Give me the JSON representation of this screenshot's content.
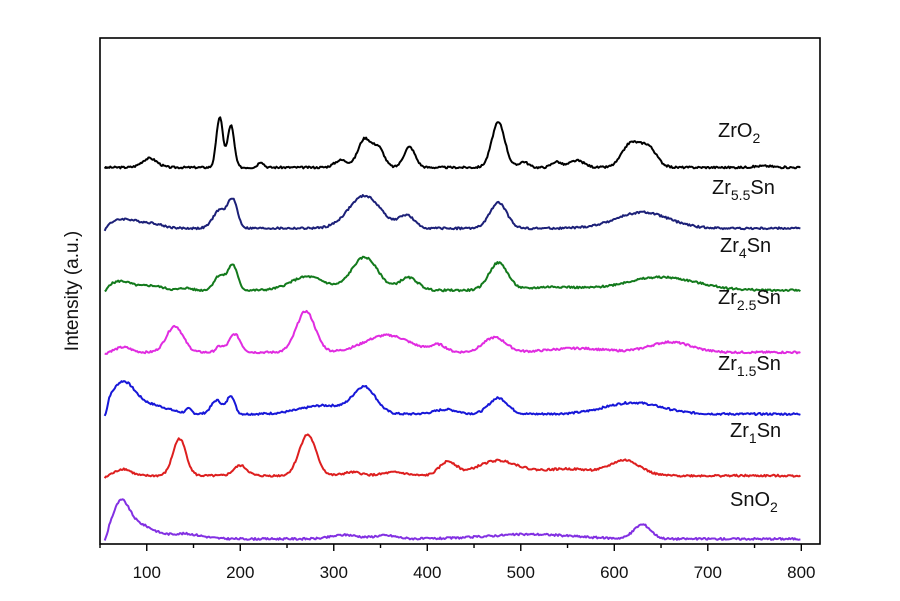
{
  "chart_data": {
    "type": "line",
    "title": "",
    "xlabel": "",
    "ylabel": "Intensity (a.u.)",
    "xlim": [
      50,
      820
    ],
    "xticks": [
      100,
      200,
      300,
      400,
      500,
      600,
      700,
      800
    ],
    "xtick_labels": [
      "100",
      "200",
      "300",
      "400",
      "500",
      "600",
      "700",
      "800"
    ],
    "yticks_shown": false,
    "grid": false,
    "legend": "inline labels at right of each trace",
    "series": [
      {
        "name": "ZrO2",
        "label_main": "ZrO",
        "label_sub": "2",
        "label_tail": "",
        "color": "#000000",
        "offset": 6,
        "baseline": 0.1,
        "peaks": [
          [
            103,
            1.6,
            8
          ],
          [
            178,
            8.8,
            3.5
          ],
          [
            190,
            7.4,
            3.5
          ],
          [
            222,
            1.0,
            3
          ],
          [
            308,
            1.3,
            7
          ],
          [
            333,
            5.0,
            7
          ],
          [
            348,
            3.3,
            6
          ],
          [
            381,
            3.6,
            6
          ],
          [
            476,
            7.9,
            7
          ],
          [
            503,
            1.0,
            5
          ],
          [
            538,
            1.0,
            5
          ],
          [
            560,
            1.2,
            8
          ],
          [
            617,
            4.0,
            9
          ],
          [
            636,
            3.6,
            9
          ],
          [
            760,
            0.25,
            10
          ]
        ]
      },
      {
        "name": "Zr5.5Sn",
        "label_main": "Zr",
        "label_sub": "5.5",
        "label_tail": "Sn",
        "color": "#1c2078",
        "offset": 5,
        "baseline": 0.3,
        "peaks": [
          [
            75,
            1.6,
            14
          ],
          [
            105,
            0.8,
            12
          ],
          [
            178,
            3.2,
            7
          ],
          [
            192,
            4.9,
            5
          ],
          [
            333,
            5.7,
            17
          ],
          [
            378,
            2.2,
            8
          ],
          [
            476,
            4.5,
            9
          ],
          [
            630,
            2.8,
            28
          ]
        ]
      },
      {
        "name": "Zr4Sn",
        "label_main": "Zr",
        "label_sub": "4",
        "label_tail": "Sn",
        "color": "#137a1c",
        "offset": 4,
        "baseline": 0.3,
        "peaks": [
          [
            72,
            1.6,
            12
          ],
          [
            105,
            0.8,
            12
          ],
          [
            142,
            0.4,
            6
          ],
          [
            178,
            2.6,
            6
          ],
          [
            192,
            4.4,
            5
          ],
          [
            272,
            2.4,
            18
          ],
          [
            333,
            5.8,
            14
          ],
          [
            380,
            2.2,
            10
          ],
          [
            476,
            4.8,
            10
          ],
          [
            535,
            0.6,
            25
          ],
          [
            650,
            2.3,
            38
          ]
        ]
      },
      {
        "name": "Zr2.5Sn",
        "label_main": "Zr",
        "label_sub": "2.5",
        "label_tail": "Sn",
        "color": "#e02ce0",
        "offset": 3,
        "baseline": 0.3,
        "peaks": [
          [
            75,
            0.9,
            8
          ],
          [
            130,
            4.6,
            9
          ],
          [
            178,
            1.0,
            4
          ],
          [
            194,
            3.2,
            6
          ],
          [
            270,
            7.2,
            10
          ],
          [
            357,
            3.0,
            24
          ],
          [
            412,
            1.2,
            8
          ],
          [
            472,
            2.6,
            12
          ],
          [
            560,
            0.7,
            30
          ],
          [
            660,
            1.8,
            22
          ]
        ]
      },
      {
        "name": "Zr1.5Sn",
        "label_main": "Zr",
        "label_sub": "1.5",
        "label_tail": "Sn",
        "color": "#1717d8",
        "offset": 2,
        "baseline": 0.35,
        "peaks": [
          [
            74,
            5.4,
            13
          ],
          [
            105,
            1.5,
            18
          ],
          [
            145,
            0.8,
            3
          ],
          [
            175,
            2.4,
            6
          ],
          [
            190,
            3.2,
            4
          ],
          [
            290,
            1.5,
            25
          ],
          [
            333,
            4.5,
            12
          ],
          [
            420,
            0.8,
            12
          ],
          [
            476,
            2.8,
            10
          ],
          [
            620,
            2.0,
            30
          ]
        ]
      },
      {
        "name": "Zr1Sn",
        "label_main": "Zr",
        "label_sub": "1",
        "label_tail": "Sn",
        "color": "#dd1f1f",
        "offset": 1,
        "baseline": 0.4,
        "peaks": [
          [
            75,
            1.2,
            8
          ],
          [
            135,
            6.5,
            7
          ],
          [
            200,
            1.8,
            7
          ],
          [
            272,
            7.2,
            9
          ],
          [
            320,
            0.6,
            10
          ],
          [
            365,
            0.6,
            12
          ],
          [
            422,
            2.4,
            9
          ],
          [
            475,
            2.6,
            22
          ],
          [
            550,
            1.2,
            30
          ],
          [
            612,
            2.6,
            16
          ]
        ]
      },
      {
        "name": "SnO2",
        "label_main": "SnO",
        "label_sub": "2",
        "label_tail": "",
        "color": "#8230e2",
        "offset": 0,
        "baseline": 0.2,
        "peaks": [
          [
            72,
            5.8,
            9
          ],
          [
            92,
            2.4,
            15
          ],
          [
            140,
            0.9,
            18
          ],
          [
            312,
            0.7,
            14
          ],
          [
            355,
            0.6,
            12
          ],
          [
            510,
            0.8,
            45
          ],
          [
            630,
            2.5,
            9
          ]
        ]
      }
    ]
  }
}
